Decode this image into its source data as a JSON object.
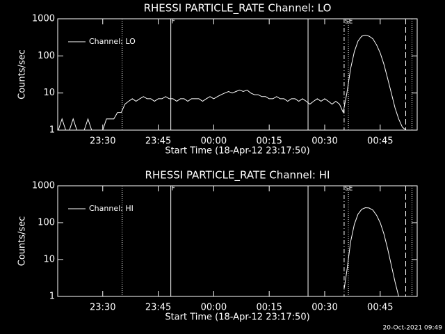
{
  "chart_data": [
    {
      "type": "line",
      "title": "RHESSI PARTICLE_RATE Channel: LO",
      "xlabel": "Start Time (18-Apr-12 23:17:50)",
      "ylabel": "Counts/sec",
      "log_y": true,
      "legend": "upper left",
      "xlim": [
        1397.83,
        1495
      ],
      "ylim": [
        1,
        1000
      ],
      "yticks": [
        1,
        10,
        100,
        1000
      ],
      "xticks": [
        {
          "value": 1410,
          "label": "23:30"
        },
        {
          "value": 1425,
          "label": "23:45"
        },
        {
          "value": 1440,
          "label": "00:00"
        },
        {
          "value": 1455,
          "label": "00:15"
        },
        {
          "value": 1470,
          "label": "00:30"
        },
        {
          "value": 1485,
          "label": "00:45"
        }
      ],
      "vlines": [
        {
          "x": 1415.25,
          "style": "dotted"
        },
        {
          "x": 1428.4,
          "style": "solid",
          "label": "F"
        },
        {
          "x": 1465.5,
          "style": "solid"
        },
        {
          "x": 1475.25,
          "style": "dash-dot",
          "label": "SE"
        },
        {
          "x": 1476.4,
          "style": "dotted"
        },
        {
          "x": 1491.9,
          "style": "dashed"
        },
        {
          "x": 1493.6,
          "style": "dotted"
        }
      ],
      "x": [
        1398,
        1399,
        1400,
        1401,
        1402,
        1403,
        1404,
        1405,
        1406,
        1407,
        1408,
        1409,
        1410,
        1411,
        1412,
        1413,
        1414,
        1415,
        1416,
        1417,
        1418,
        1419,
        1420,
        1421,
        1422,
        1423,
        1424,
        1425,
        1426,
        1427,
        1428,
        1429,
        1430,
        1431,
        1432,
        1433,
        1434,
        1435,
        1436,
        1437,
        1438,
        1439,
        1440,
        1441,
        1442,
        1443,
        1444,
        1445,
        1446,
        1447,
        1448,
        1449,
        1450,
        1451,
        1452,
        1453,
        1454,
        1455,
        1456,
        1457,
        1458,
        1459,
        1460,
        1461,
        1462,
        1463,
        1464,
        1465,
        1466,
        1467,
        1468,
        1469,
        1470,
        1471,
        1472,
        1473,
        1474,
        1475,
        1476,
        1477,
        1478,
        1479,
        1480,
        1481,
        1482,
        1483,
        1484,
        1485,
        1486,
        1487,
        1488,
        1489,
        1490,
        1491,
        1492
      ],
      "series": [
        {
          "name": "Channel: LO",
          "color": "#ffffff",
          "values": [
            1,
            2,
            1,
            1,
            2,
            1,
            1,
            1,
            2,
            1,
            1,
            1,
            1,
            2,
            2,
            2,
            3,
            3,
            5,
            6,
            7,
            6,
            7,
            8,
            7,
            7,
            6,
            7,
            7,
            8,
            7,
            7,
            6,
            7,
            7,
            6,
            7,
            7,
            7,
            6,
            7,
            8,
            7,
            8,
            9,
            10,
            11,
            10,
            11,
            12,
            11,
            12,
            10,
            9,
            9,
            8,
            8,
            7,
            7,
            8,
            7,
            7,
            6,
            7,
            7,
            6,
            7,
            6,
            5,
            6,
            7,
            6,
            7,
            6,
            5,
            6,
            5,
            3,
            10,
            45,
            130,
            250,
            340,
            360,
            340,
            290,
            200,
            120,
            60,
            25,
            10,
            4,
            2,
            1.2,
            1
          ]
        }
      ]
    },
    {
      "type": "line",
      "title": "RHESSI PARTICLE_RATE Channel: HI",
      "xlabel": "Start Time (18-Apr-12 23:17:50)",
      "ylabel": "Counts/sec",
      "log_y": true,
      "legend": "upper left",
      "xlim": [
        1397.83,
        1495
      ],
      "ylim": [
        1,
        1000
      ],
      "yticks": [
        1,
        10,
        100,
        1000
      ],
      "xticks": [
        {
          "value": 1410,
          "label": "23:30"
        },
        {
          "value": 1425,
          "label": "23:45"
        },
        {
          "value": 1440,
          "label": "00:00"
        },
        {
          "value": 1455,
          "label": "00:15"
        },
        {
          "value": 1470,
          "label": "00:30"
        },
        {
          "value": 1485,
          "label": "00:45"
        }
      ],
      "vlines": [
        {
          "x": 1415.25,
          "style": "dotted"
        },
        {
          "x": 1428.4,
          "style": "solid",
          "label": "F"
        },
        {
          "x": 1465.5,
          "style": "solid"
        },
        {
          "x": 1475.25,
          "style": "dash-dot",
          "label": "SE"
        },
        {
          "x": 1476.4,
          "style": "dotted"
        },
        {
          "x": 1491.9,
          "style": "dashed"
        },
        {
          "x": 1493.6,
          "style": "dotted"
        }
      ],
      "x": [
        1475.3,
        1476,
        1477,
        1478,
        1479,
        1480,
        1481,
        1482,
        1483,
        1484,
        1485,
        1486,
        1487,
        1488,
        1489,
        1490
      ],
      "series": [
        {
          "name": "Channel: HI",
          "color": "#ffffff",
          "values": [
            1.7,
            5,
            30,
            90,
            170,
            230,
            255,
            250,
            220,
            160,
            100,
            50,
            20,
            7,
            2.5,
            1
          ]
        }
      ]
    }
  ],
  "footer": "20-Oct-2021 09:49"
}
